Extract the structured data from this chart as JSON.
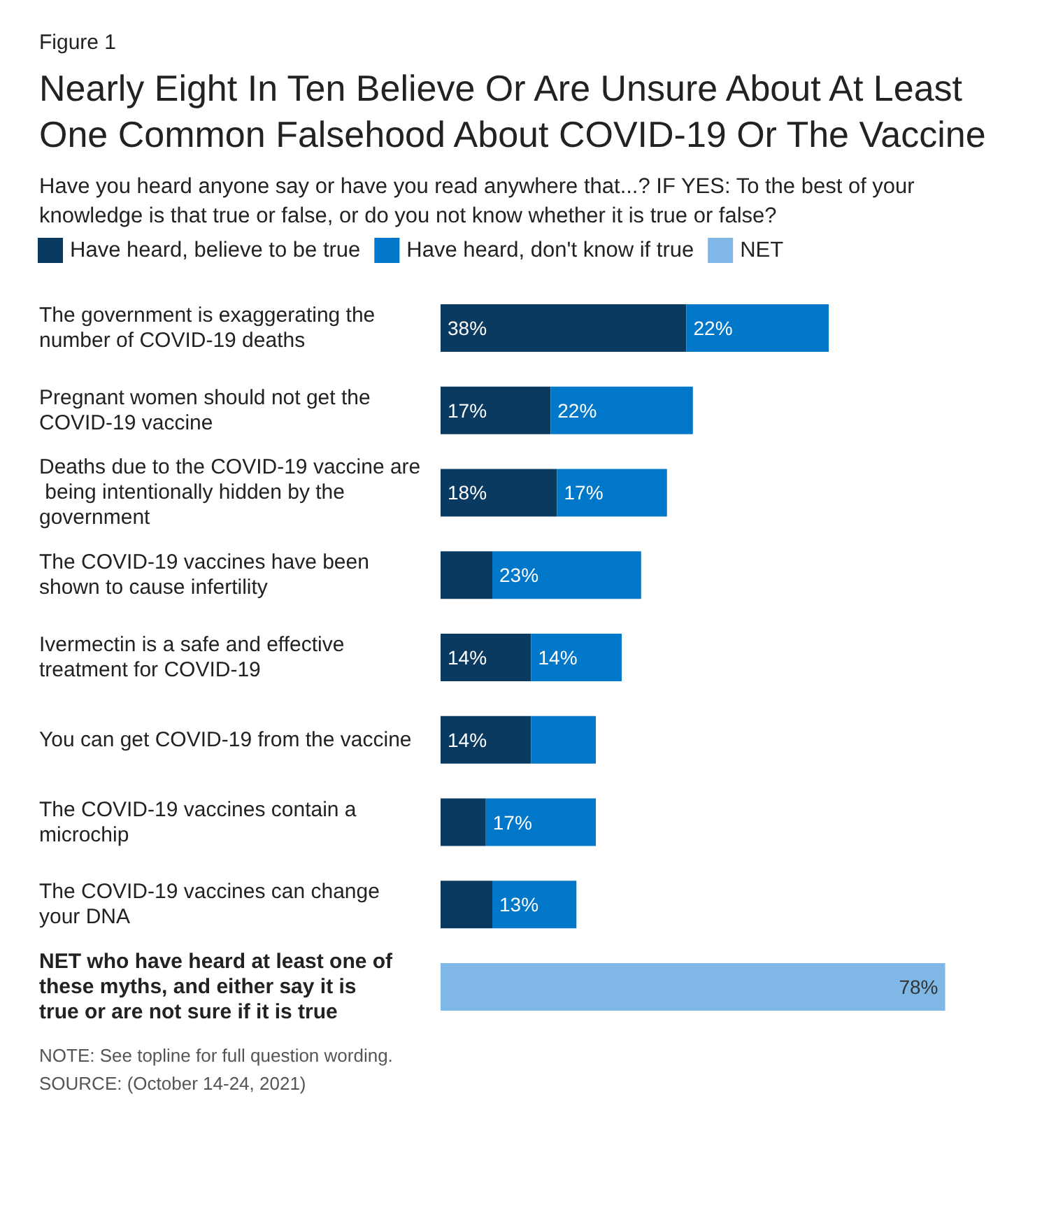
{
  "chart_data": {
    "type": "bar",
    "orientation": "horizontal",
    "stacked": true,
    "title": "Nearly Eight In Ten Believe Or Are Unsure About At Least One Common Falsehood About COVID-19 Or The Vaccine",
    "subtitle": "Have you heard anyone say or have you read anywhere that...? IF YES: To the best of your knowledge is that true or false, or do you not know whether it is true or false?",
    "annotations": [
      "Figure 1",
      "NOTE: See topline for full question wording.",
      "SOURCE: (October 14-24, 2021)"
    ],
    "categories": [
      "The government is exaggerating the number of COVID-19 deaths",
      "Pregnant women should not get the COVID-19 vaccine",
      "Deaths due to the COVID-19 vaccine are being intentionally hidden by the government",
      "The COVID-19 vaccines have been shown to cause infertility",
      "Ivermectin is a safe and effective treatment for COVID-19",
      "You can get COVID-19 from the vaccine",
      "The COVID-19 vaccines contain a microchip",
      "The COVID-19 vaccines can change your DNA",
      "NET who have heard at least one of these myths, and either say it is true or are not sure if it is true"
    ],
    "series": [
      {
        "name": "Have heard, believe to be true",
        "color": "#0b3a60",
        "values": [
          38,
          17,
          18,
          8,
          14,
          14,
          7,
          8,
          null
        ],
        "value_labels": [
          "38%",
          "17%",
          "18%",
          null,
          "14%",
          "14%",
          null,
          null,
          null
        ]
      },
      {
        "name": "Have heard, don't know if true",
        "color": "#0077c8",
        "values": [
          22,
          22,
          17,
          23,
          14,
          10,
          17,
          13,
          null
        ],
        "value_labels": [
          "22%",
          "22%",
          "17%",
          "23%",
          "14%",
          null,
          "17%",
          "13%",
          null
        ]
      },
      {
        "name": "NET",
        "color": "#7fb8e6",
        "values": [
          null,
          null,
          null,
          null,
          null,
          null,
          null,
          null,
          78
        ],
        "value_labels": [
          null,
          null,
          null,
          null,
          null,
          null,
          null,
          null,
          "78%"
        ]
      }
    ],
    "legend": "top left"
  }
}
